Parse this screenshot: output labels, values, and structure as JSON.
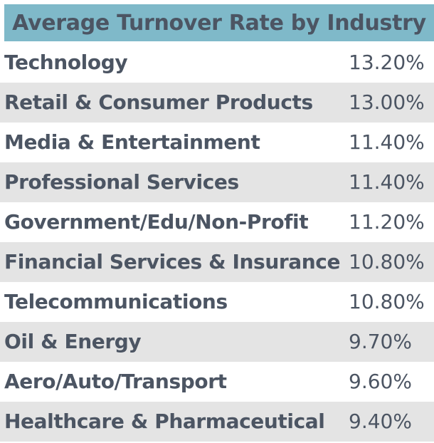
{
  "chart_data": {
    "type": "table",
    "title": "Average Turnover Rate by Industry",
    "rows": [
      {
        "industry": "Technology",
        "rate_text": "13.20%",
        "rate": 13.2
      },
      {
        "industry": "Retail & Consumer Products",
        "rate_text": "13.00%",
        "rate": 13.0
      },
      {
        "industry": "Media & Entertainment",
        "rate_text": "11.40%",
        "rate": 11.4
      },
      {
        "industry": "Professional Services",
        "rate_text": "11.40%",
        "rate": 11.4
      },
      {
        "industry": "Government/Edu/Non-Profit",
        "rate_text": "11.20%",
        "rate": 11.2
      },
      {
        "industry": "Financial Services & Insurance",
        "rate_text": "10.80%",
        "rate": 10.8
      },
      {
        "industry": "Telecommunications",
        "rate_text": "10.80%",
        "rate": 10.8
      },
      {
        "industry": "Oil & Energy",
        "rate_text": "9.70%",
        "rate": 9.7
      },
      {
        "industry": "Aero/Auto/Transport",
        "rate_text": "9.60%",
        "rate": 9.6
      },
      {
        "industry": "Healthcare & Pharmaceutical",
        "rate_text": "9.40%",
        "rate": 9.4
      }
    ]
  },
  "colors": {
    "header_bg": "#7fb9c9",
    "text": "#4c5563",
    "shaded_row": "#e4e4e4",
    "plain_row": "#ffffff"
  }
}
